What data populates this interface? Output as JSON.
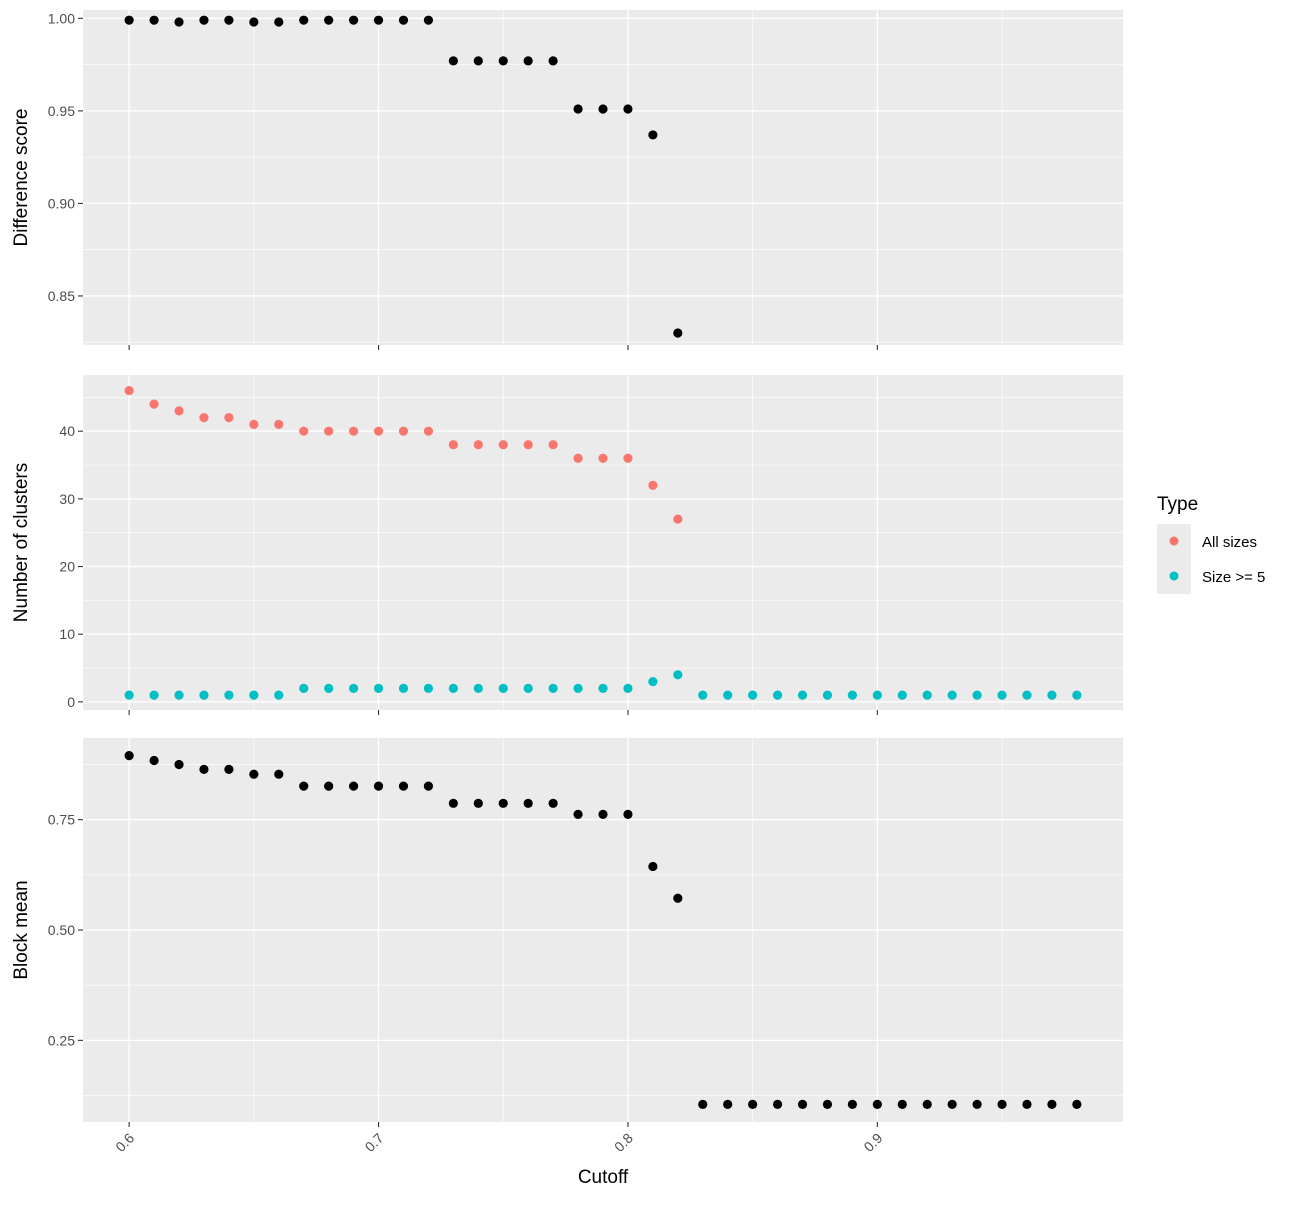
{
  "chart_data": [
    {
      "type": "scatter",
      "panel": "top",
      "ylabel": "Difference score",
      "xlim": [
        0.5815,
        0.9985
      ],
      "ylim": [
        0.8235,
        1.0045
      ],
      "y_ticks": [
        "0.85",
        "0.90",
        "0.95",
        "1.00"
      ],
      "y_tick_values": [
        0.85,
        0.9,
        0.95,
        1.0
      ],
      "point_color": "#000000",
      "x": [
        0.6,
        0.61,
        0.62,
        0.63,
        0.64,
        0.65,
        0.66,
        0.67,
        0.68,
        0.69,
        0.7,
        0.71,
        0.72,
        0.73,
        0.74,
        0.75,
        0.76,
        0.77,
        0.78,
        0.79,
        0.8,
        0.81,
        0.82
      ],
      "y": [
        0.999,
        0.999,
        0.998,
        0.999,
        0.999,
        0.998,
        0.998,
        0.999,
        0.999,
        0.999,
        0.999,
        0.999,
        0.999,
        0.977,
        0.977,
        0.977,
        0.977,
        0.977,
        0.951,
        0.951,
        0.951,
        0.937,
        0.83
      ]
    },
    {
      "type": "scatter",
      "panel": "middle",
      "ylabel": "Number of clusters",
      "xlim": [
        0.5815,
        0.9985
      ],
      "ylim": [
        -1.2,
        48.3
      ],
      "y_ticks": [
        "0",
        "10",
        "20",
        "30",
        "40"
      ],
      "y_tick_values": [
        0,
        10,
        20,
        30,
        40
      ],
      "series": [
        {
          "name": "All sizes",
          "color": "#F8766D",
          "x": [
            0.6,
            0.61,
            0.62,
            0.63,
            0.64,
            0.65,
            0.66,
            0.67,
            0.68,
            0.69,
            0.7,
            0.71,
            0.72,
            0.73,
            0.74,
            0.75,
            0.76,
            0.77,
            0.78,
            0.79,
            0.8,
            0.81,
            0.82
          ],
          "y": [
            46,
            44,
            43,
            42,
            42,
            41,
            41,
            40,
            40,
            40,
            40,
            40,
            40,
            38,
            38,
            38,
            38,
            38,
            36,
            36,
            36,
            32,
            27
          ]
        },
        {
          "name": "Size >= 5",
          "color": "#00BFC4",
          "x": [
            0.6,
            0.61,
            0.62,
            0.63,
            0.64,
            0.65,
            0.66,
            0.67,
            0.68,
            0.69,
            0.7,
            0.71,
            0.72,
            0.73,
            0.74,
            0.75,
            0.76,
            0.77,
            0.78,
            0.79,
            0.8,
            0.81,
            0.82,
            0.83,
            0.84,
            0.85,
            0.86,
            0.87,
            0.88,
            0.89,
            0.9,
            0.91,
            0.92,
            0.93,
            0.94,
            0.95,
            0.96,
            0.97,
            0.98
          ],
          "y": [
            1,
            1,
            1,
            1,
            1,
            1,
            1,
            2,
            2,
            2,
            2,
            2,
            2,
            2,
            2,
            2,
            2,
            2,
            2,
            2,
            2,
            3,
            4,
            1,
            1,
            1,
            1,
            1,
            1,
            1,
            1,
            1,
            1,
            1,
            1,
            1,
            1,
            1,
            1
          ]
        }
      ]
    },
    {
      "type": "scatter",
      "panel": "bottom",
      "ylabel": "Block mean",
      "xlabel": "Cutoff",
      "xlim": [
        0.5815,
        0.9985
      ],
      "ylim": [
        0.065,
        0.935
      ],
      "y_ticks": [
        "0.25",
        "0.50",
        "0.75"
      ],
      "y_tick_values": [
        0.25,
        0.5,
        0.75
      ],
      "x_ticks": [
        "0.6",
        "0.7",
        "0.8",
        "0.9"
      ],
      "x_tick_values": [
        0.6,
        0.7,
        0.8,
        0.9
      ],
      "point_color": "#000000",
      "x": [
        0.6,
        0.61,
        0.62,
        0.63,
        0.64,
        0.65,
        0.66,
        0.67,
        0.68,
        0.69,
        0.7,
        0.71,
        0.72,
        0.73,
        0.74,
        0.75,
        0.76,
        0.77,
        0.78,
        0.79,
        0.8,
        0.81,
        0.82,
        0.83,
        0.84,
        0.85,
        0.86,
        0.87,
        0.88,
        0.89,
        0.9,
        0.91,
        0.92,
        0.93,
        0.94,
        0.95,
        0.96,
        0.97,
        0.98
      ],
      "y": [
        0.895,
        0.884,
        0.875,
        0.864,
        0.864,
        0.853,
        0.853,
        0.826,
        0.826,
        0.826,
        0.826,
        0.826,
        0.826,
        0.787,
        0.787,
        0.787,
        0.787,
        0.787,
        0.762,
        0.762,
        0.762,
        0.644,
        0.572,
        0.105,
        0.105,
        0.105,
        0.105,
        0.105,
        0.105,
        0.105,
        0.105,
        0.105,
        0.105,
        0.105,
        0.105,
        0.105,
        0.105,
        0.105,
        0.105
      ]
    }
  ],
  "legend": {
    "title": "Type",
    "placement": "right",
    "items": [
      {
        "label": "All sizes",
        "color": "#F8766D"
      },
      {
        "label": "Size >= 5",
        "color": "#00BFC4"
      }
    ]
  },
  "style": {
    "panel_background": "#EBEBEB",
    "grid_color": "#FFFFFF"
  }
}
